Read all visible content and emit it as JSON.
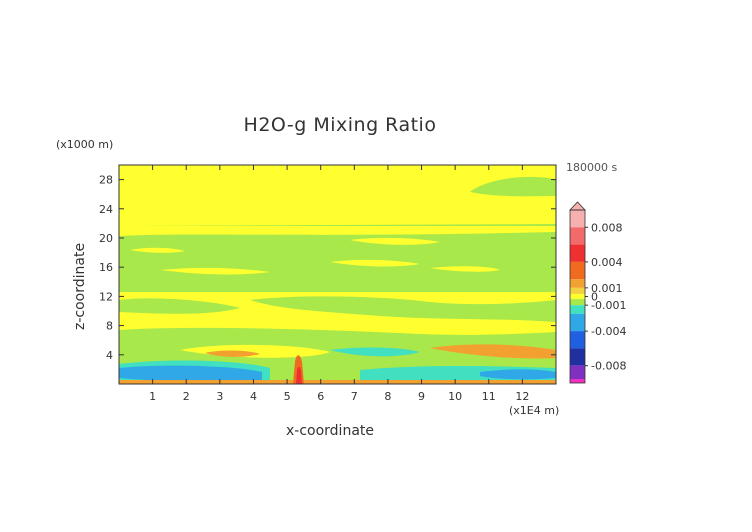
{
  "chart_data": {
    "type": "heatmap",
    "title": "H2O-g Mixing Ratio",
    "xlabel": "x-coordinate",
    "ylabel": "z-coordinate",
    "x_unit": "(x1E4 m)",
    "z_unit": "(x1000 m)",
    "time_label": "180000 s",
    "xlim": [
      0,
      13
    ],
    "ylim": [
      0,
      30
    ],
    "x_ticks": [
      1,
      2,
      3,
      4,
      5,
      6,
      7,
      8,
      9,
      10,
      11,
      12
    ],
    "y_ticks": [
      4,
      8,
      12,
      16,
      20,
      24,
      28
    ],
    "colorbar": {
      "range": [
        -0.01,
        0.01
      ],
      "tick_values": [
        0.008,
        0.004,
        0.001,
        0,
        -0.001,
        -0.004,
        -0.008
      ],
      "tick_labels": [
        "0.008",
        "0.004",
        "0.001",
        "0",
        "-0.001",
        "-0.004",
        "-0.008"
      ],
      "stops": [
        {
          "value": 0.01,
          "color": "#f7b0b0"
        },
        {
          "value": 0.008,
          "color": "#f26a6a"
        },
        {
          "value": 0.006,
          "color": "#ef3030"
        },
        {
          "value": 0.004,
          "color": "#f06a20"
        },
        {
          "value": 0.002,
          "color": "#f2a030"
        },
        {
          "value": 0.001,
          "color": "#f2d040"
        },
        {
          "value": 0.0003,
          "color": "#ffff30"
        },
        {
          "value": -0.0003,
          "color": "#a8e84a"
        },
        {
          "value": -0.001,
          "color": "#40e0c0"
        },
        {
          "value": -0.002,
          "color": "#30a8e8"
        },
        {
          "value": -0.004,
          "color": "#2060e0"
        },
        {
          "value": -0.006,
          "color": "#2030a0"
        },
        {
          "value": -0.008,
          "color": "#8030c0"
        },
        {
          "value": -0.01,
          "color": "#f030c0"
        }
      ]
    },
    "regions": [
      {
        "name": "band-z22-29",
        "value": 0.0,
        "color": "#ffff30",
        "x": [
          0,
          13
        ],
        "z": [
          22,
          30
        ]
      },
      {
        "name": "band-z13-22",
        "value": -0.0005,
        "color": "#a8e84a",
        "x": [
          0,
          13
        ],
        "z": [
          13,
          22
        ]
      },
      {
        "name": "band-z3-13",
        "value": 0.0,
        "color": "#ffff30",
        "x": [
          0,
          13
        ],
        "z": [
          3,
          13
        ]
      },
      {
        "name": "low-negative",
        "value": -0.002,
        "color": "#30a8e8",
        "x": [
          0,
          4.4
        ],
        "z": [
          0.5,
          2
        ]
      },
      {
        "name": "surface-layer",
        "value": 0.002,
        "color": "#f2a030",
        "x": [
          0,
          13
        ],
        "z": [
          0,
          0.5
        ]
      },
      {
        "name": "plume",
        "value": 0.004,
        "color": "#f06a20",
        "x": [
          5.1,
          5.4
        ],
        "z": [
          0,
          4.5
        ]
      },
      {
        "name": "mid-positive-east",
        "value": 0.003,
        "color": "#f2a030",
        "x": [
          9.8,
          12.8
        ],
        "z": [
          4,
          5
        ]
      }
    ]
  }
}
